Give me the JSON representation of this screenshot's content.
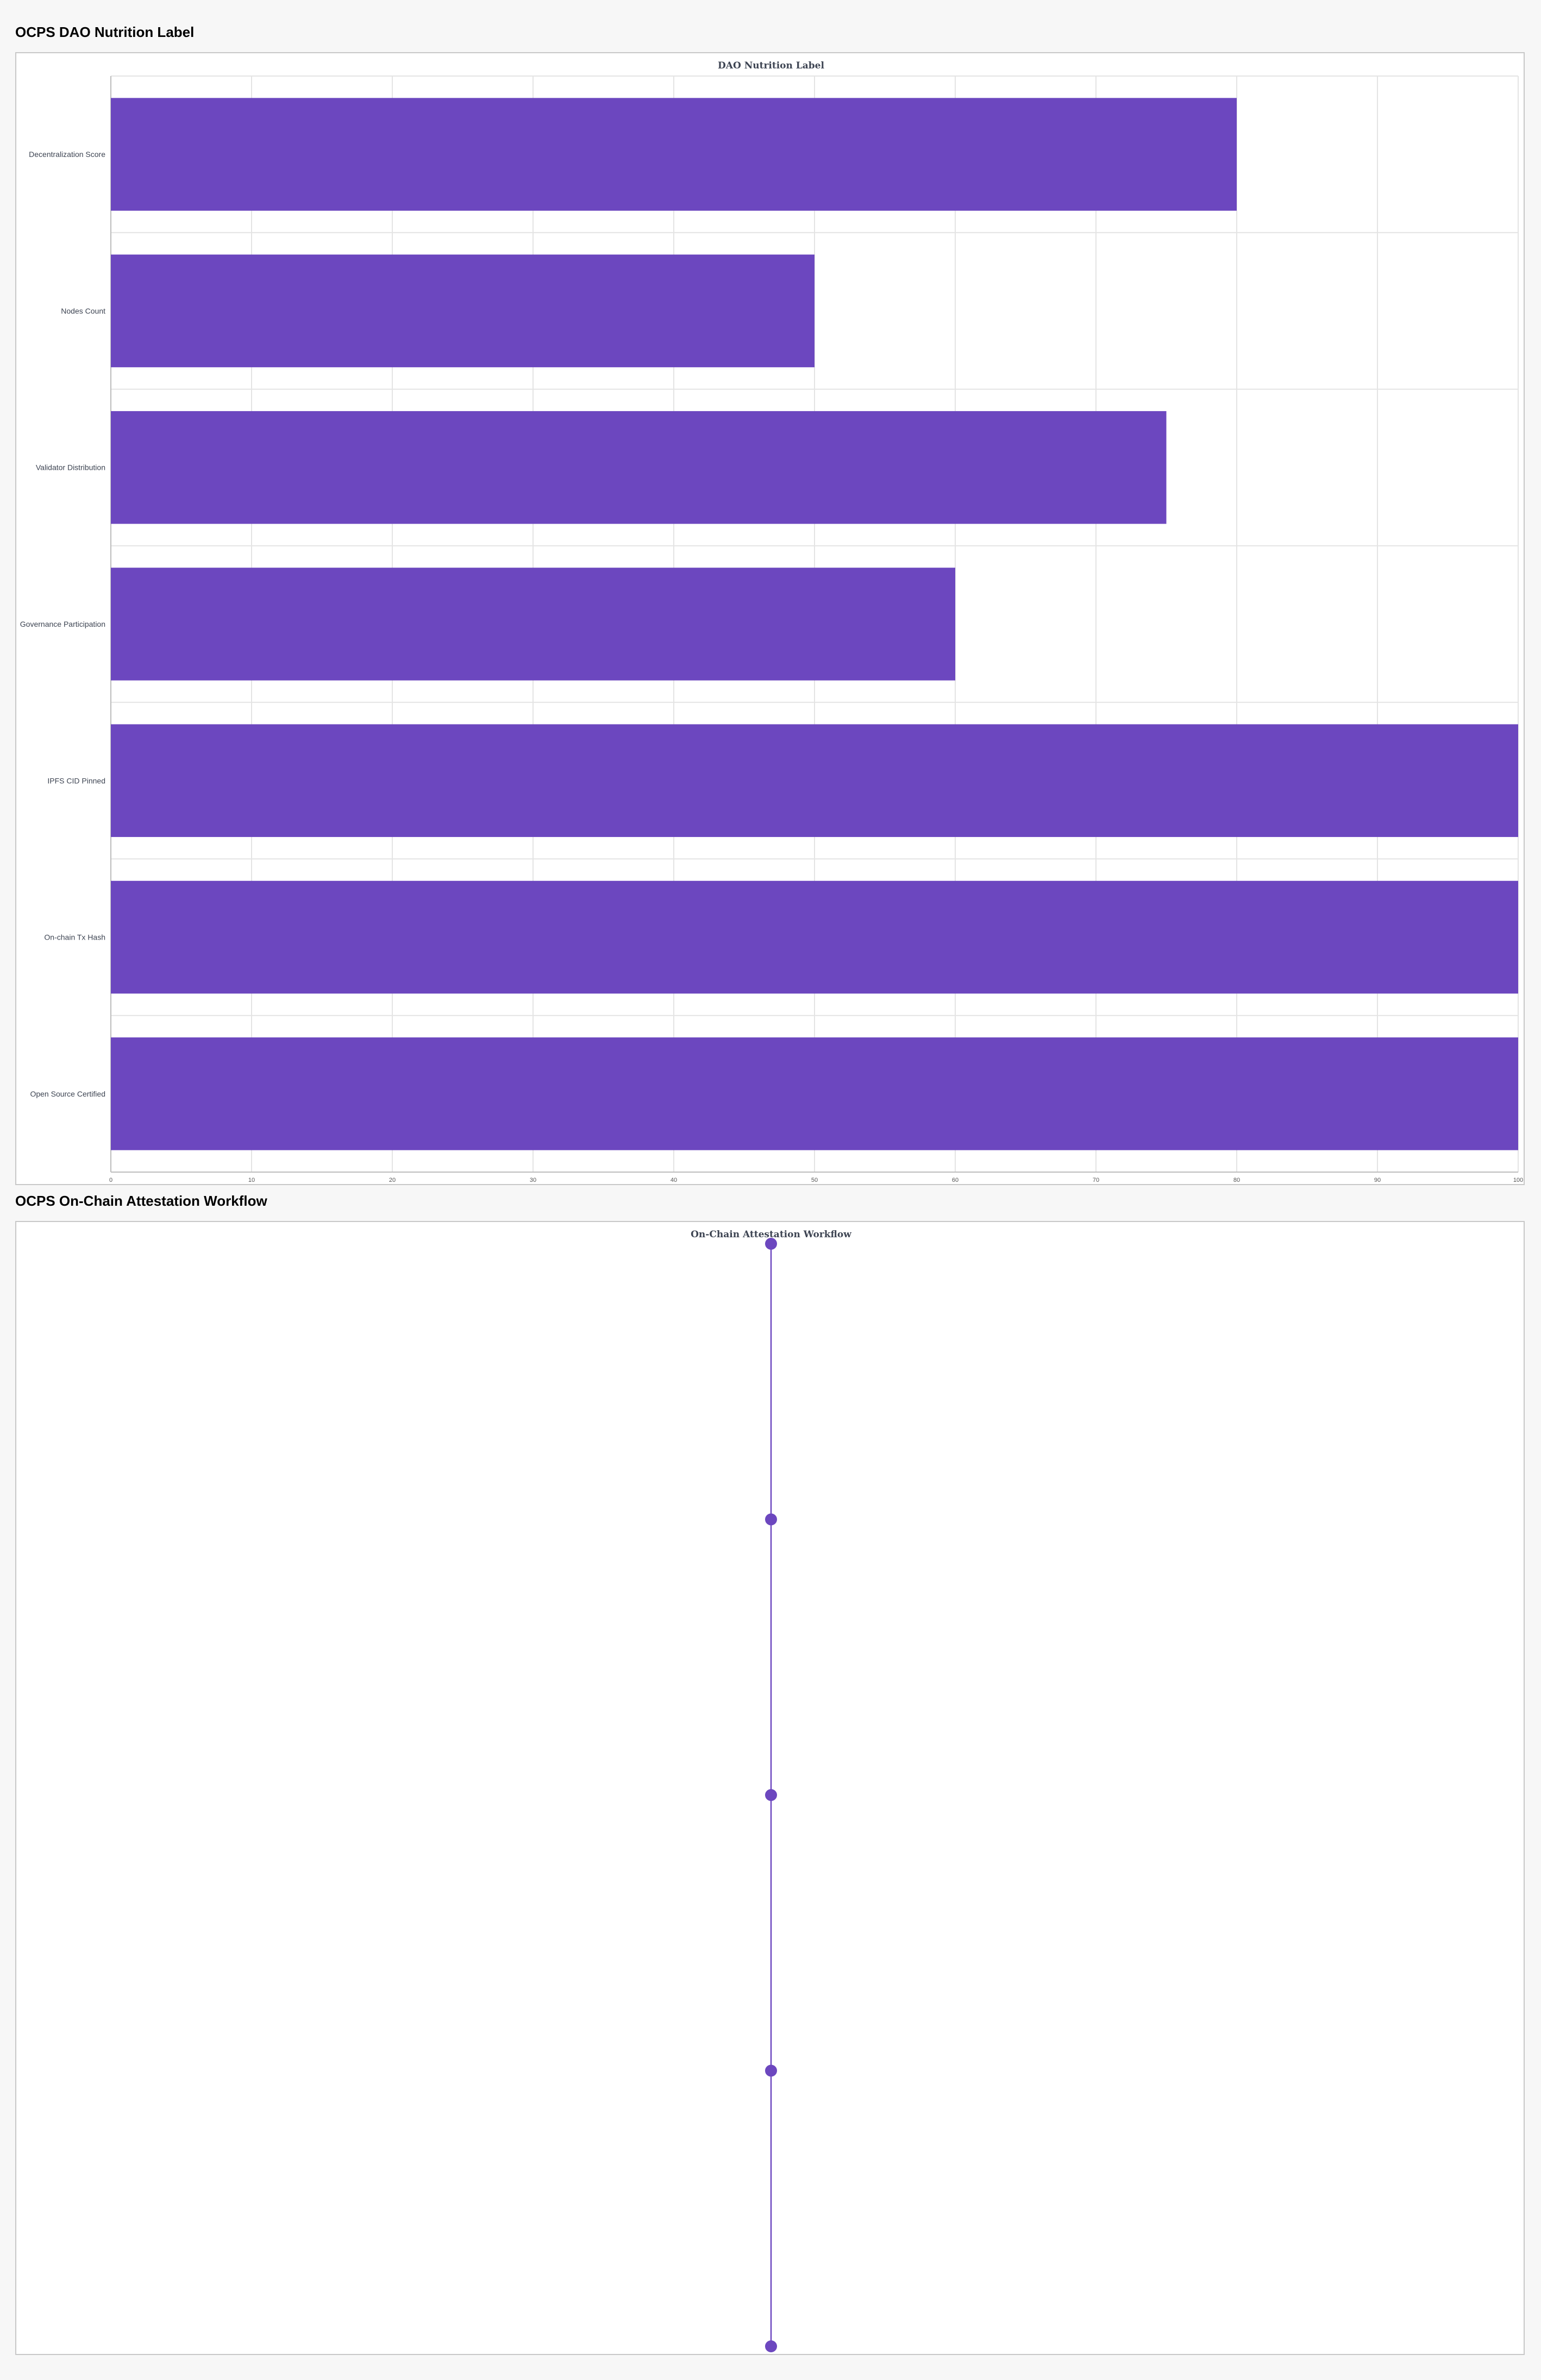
{
  "sections": {
    "nutrition_heading": "OCPS DAO Nutrition Label",
    "workflow_heading": "OCPS On-Chain Attestation Workflow"
  },
  "colors": {
    "accent": "#6c47bf",
    "grid": "#e4e4e4",
    "panel_border": "#c8c8c8",
    "background": "#f7f7f7"
  },
  "chart_data": [
    {
      "type": "bar",
      "orientation": "horizontal",
      "title": "DAO Nutrition Label",
      "categories": [
        "Decentralization Score",
        "Nodes Count",
        "Validator Distribution",
        "Governance Participation",
        "IPFS CID Pinned",
        "On-chain Tx Hash",
        "Open Source Certified"
      ],
      "values": [
        80,
        50,
        75,
        60,
        100,
        100,
        100
      ],
      "xlim": [
        0,
        100
      ],
      "xticks": [
        0,
        10,
        20,
        30,
        40,
        50,
        60,
        70,
        80,
        90,
        100
      ],
      "grid": true,
      "legend": "none"
    },
    {
      "type": "line",
      "title": "On-Chain Attestation Workflow",
      "points": 5,
      "orientation": "vertical",
      "grid": false,
      "legend": "none"
    }
  ]
}
